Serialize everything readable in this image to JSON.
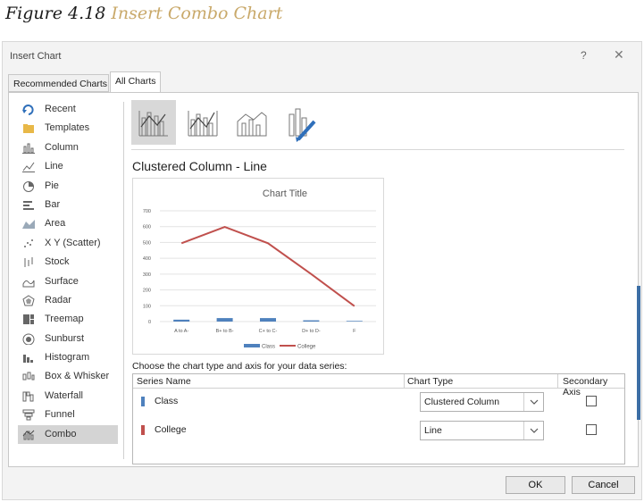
{
  "figure": {
    "number": "Figure 4.18",
    "caption": "Insert Combo Chart"
  },
  "dialog": {
    "title": "Insert Chart",
    "help": "?",
    "close": "✕",
    "tabs": [
      {
        "label": "Recommended Charts",
        "selected": false
      },
      {
        "label": "All Charts",
        "selected": true
      }
    ],
    "sidebar": [
      {
        "label": "Recent",
        "icon": "recent-icon"
      },
      {
        "label": "Templates",
        "icon": "templates-folder-icon"
      },
      {
        "label": "Column",
        "icon": "column-chart-icon"
      },
      {
        "label": "Line",
        "icon": "line-chart-icon"
      },
      {
        "label": "Pie",
        "icon": "pie-chart-icon"
      },
      {
        "label": "Bar",
        "icon": "bar-chart-icon"
      },
      {
        "label": "Area",
        "icon": "area-chart-icon"
      },
      {
        "label": "X Y (Scatter)",
        "icon": "scatter-chart-icon"
      },
      {
        "label": "Stock",
        "icon": "stock-chart-icon"
      },
      {
        "label": "Surface",
        "icon": "surface-chart-icon"
      },
      {
        "label": "Radar",
        "icon": "radar-chart-icon"
      },
      {
        "label": "Treemap",
        "icon": "treemap-chart-icon"
      },
      {
        "label": "Sunburst",
        "icon": "sunburst-chart-icon"
      },
      {
        "label": "Histogram",
        "icon": "histogram-chart-icon"
      },
      {
        "label": "Box & Whisker",
        "icon": "box-whisker-chart-icon"
      },
      {
        "label": "Waterfall",
        "icon": "waterfall-chart-icon"
      },
      {
        "label": "Funnel",
        "icon": "funnel-chart-icon"
      },
      {
        "label": "Combo",
        "icon": "combo-chart-icon",
        "selected": true
      }
    ],
    "combo_types": [
      {
        "icon": "clustered-column-line-icon",
        "selected": true
      },
      {
        "icon": "clustered-column-line-secondary-axis-icon",
        "selected": false
      },
      {
        "icon": "stacked-area-clustered-column-icon",
        "selected": false
      },
      {
        "icon": "custom-combination-icon",
        "selected": false
      }
    ],
    "selected_type_name": "Clustered Column - Line",
    "series_section": {
      "title": "Choose the chart type and axis for your data series:",
      "headers": {
        "name": "Series Name",
        "type": "Chart Type",
        "axis": "Secondary Axis"
      },
      "rows": [
        {
          "name": "Class",
          "color": "#4f81bd",
          "chart_type": "Clustered Column",
          "secondary_axis": false
        },
        {
          "name": "College",
          "color": "#c0504d",
          "chart_type": "Line",
          "secondary_axis": false
        }
      ]
    },
    "buttons": {
      "ok": "OK",
      "cancel": "Cancel"
    }
  },
  "chart_data": {
    "type": "bar",
    "title": "Chart Title",
    "categories": [
      "A to A-",
      "B+ to B-",
      "C+ to C-",
      "D+ to D-",
      "F"
    ],
    "ylim": [
      0,
      700
    ],
    "yticks": [
      "0",
      "100",
      "200",
      "300",
      "400",
      "500",
      "600",
      "700"
    ],
    "grid": true,
    "legend_position": "bottom",
    "series": [
      {
        "name": "Class",
        "kind": "column",
        "color": "#4f81bd",
        "values": [
          12,
          22,
          22,
          8,
          4
        ]
      },
      {
        "name": "College",
        "kind": "line",
        "color": "#c0504d",
        "values": [
          495,
          598,
          495,
          300,
          98
        ]
      }
    ]
  }
}
